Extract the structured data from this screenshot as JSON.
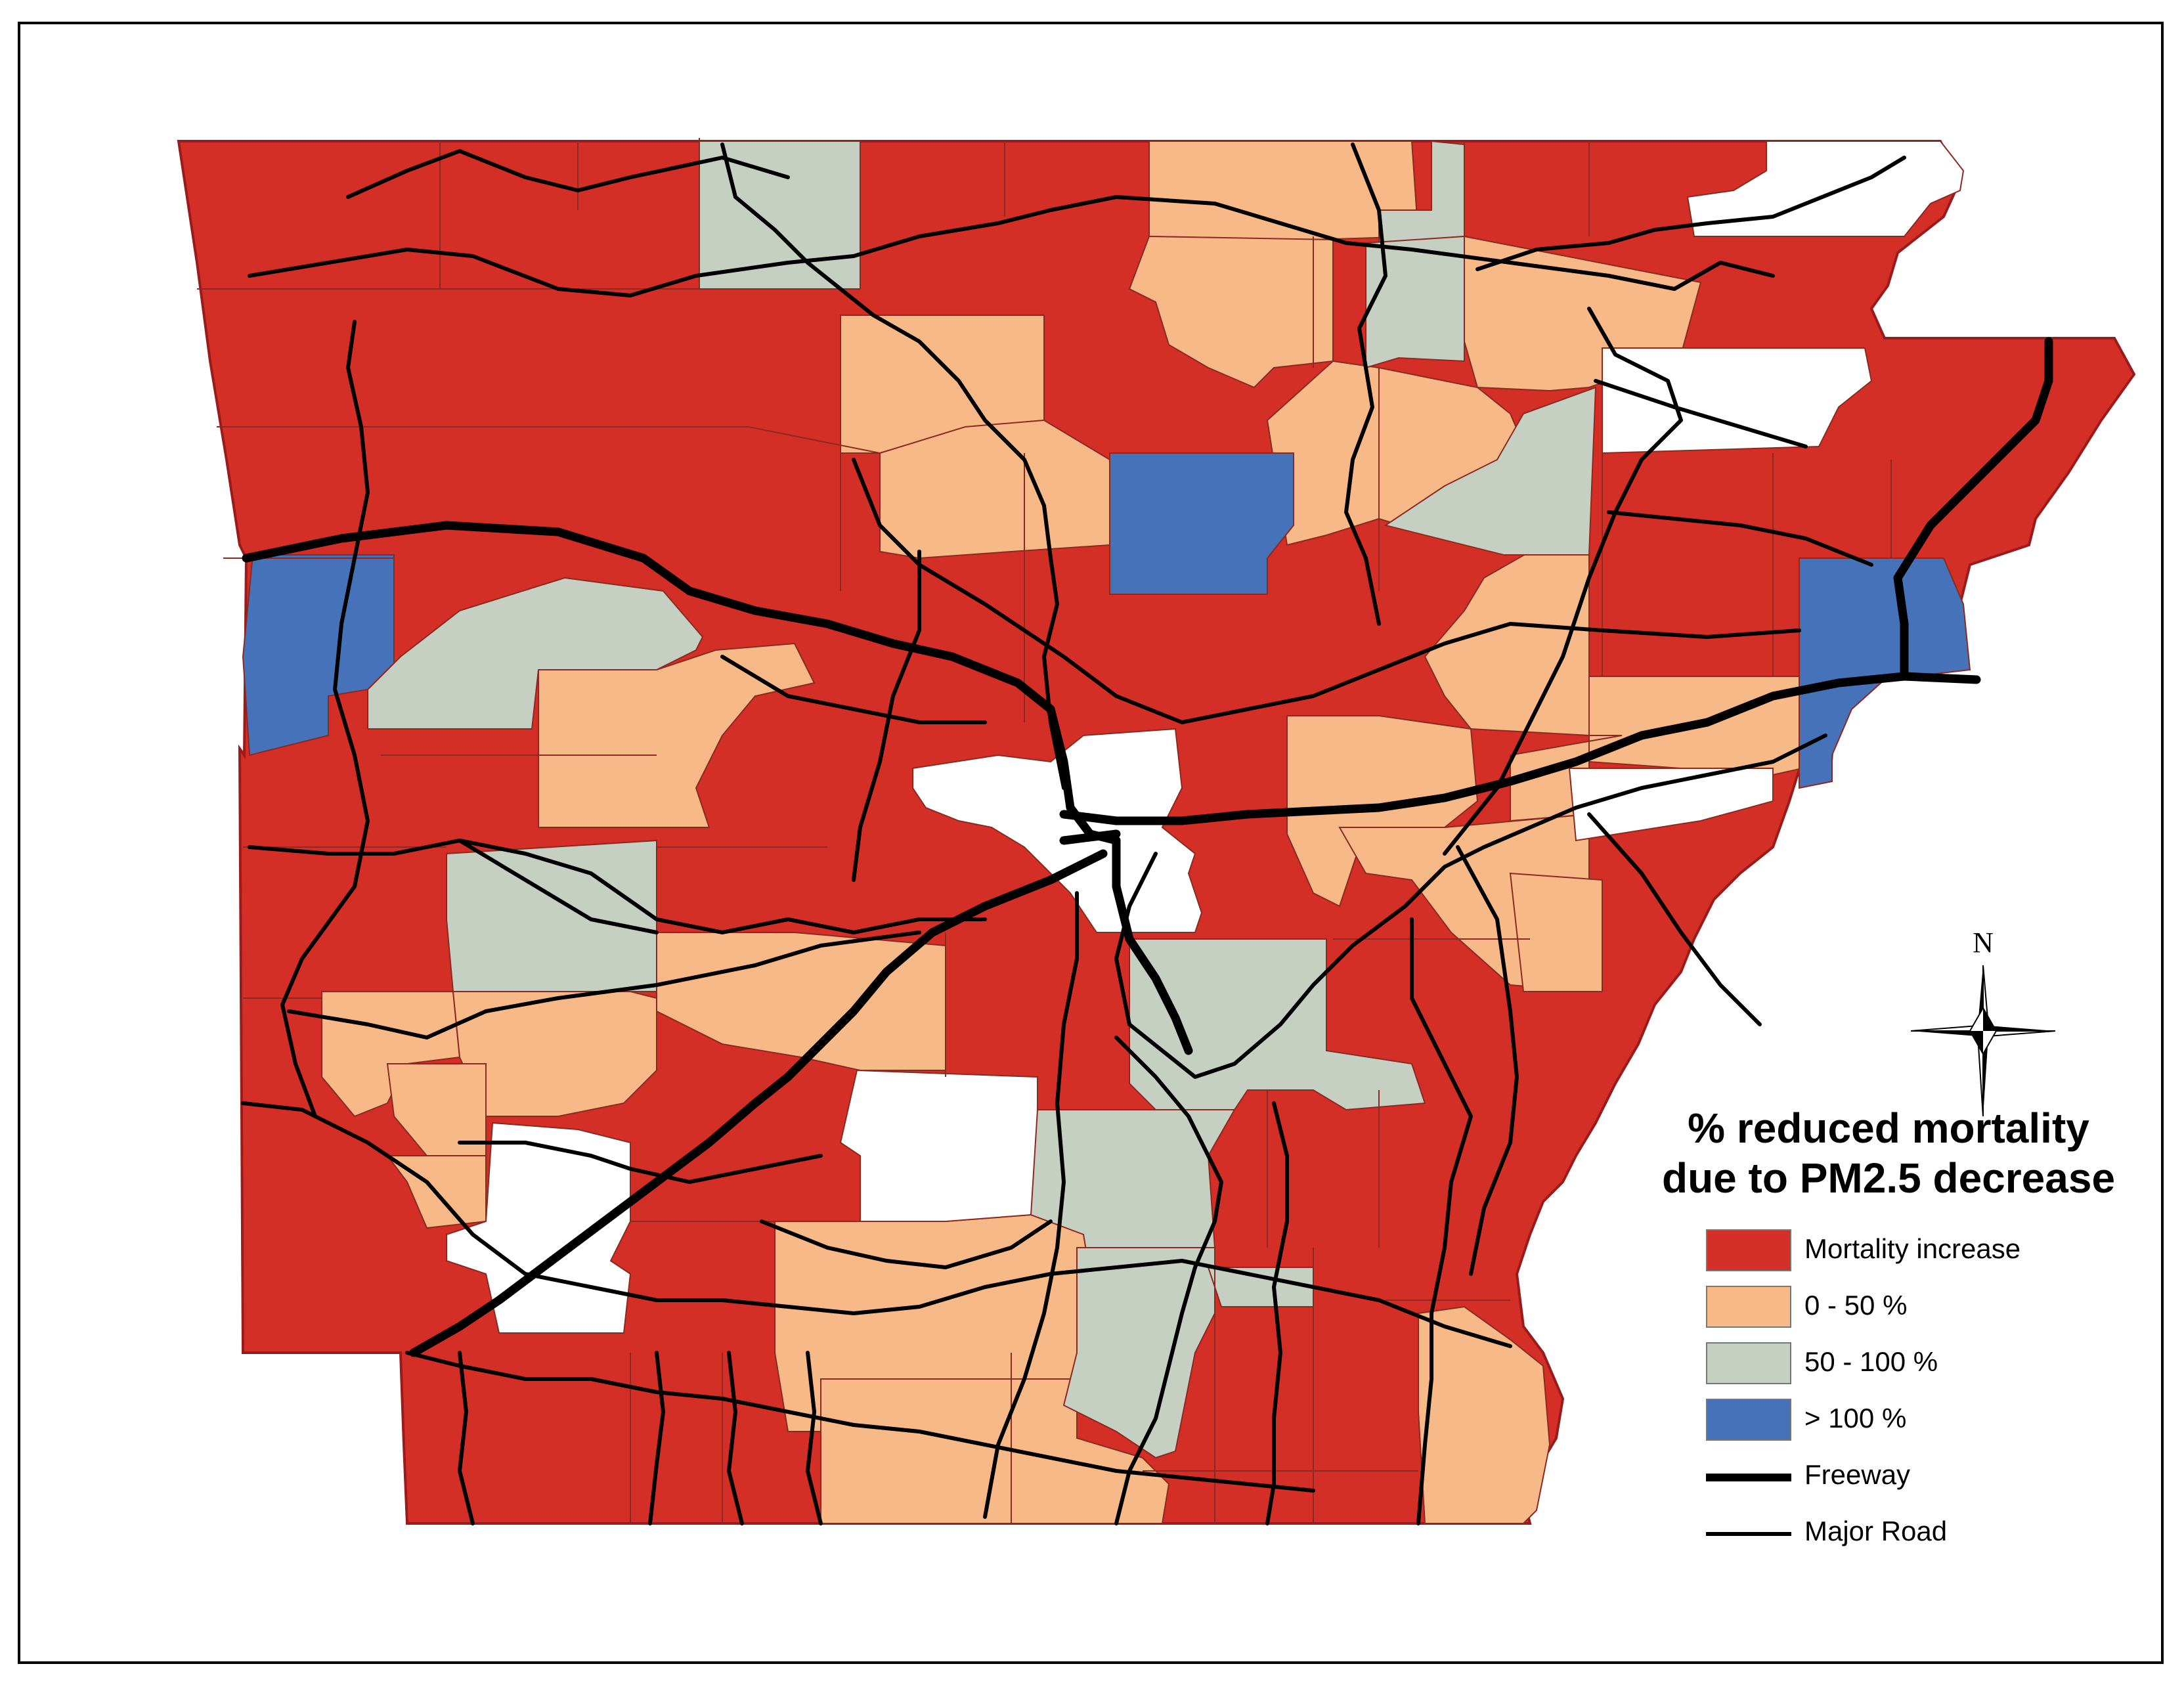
{
  "legend": {
    "title_line1": "% reduced mortality",
    "title_line2": "due to PM2.5 decrease",
    "items": [
      {
        "label": "Mortality increase",
        "color": "#d32f27"
      },
      {
        "label": "0 - 50 %",
        "color": "#f7b987"
      },
      {
        "label": "50 - 100 %",
        "color": "#c5d0c3"
      },
      {
        "label": "> 100 %",
        "color": "#4572b8"
      }
    ],
    "freeway_label": "Freeway",
    "major_road_label": "Major Road"
  },
  "compass": {
    "north_label": "N"
  },
  "colors": {
    "increase": "#d32f27",
    "low": "#f7b987",
    "mid": "#c5d0c3",
    "high": "#4572b8",
    "nodata": "#ffffff",
    "boundary": "#9a1b1b",
    "road": "#000000"
  }
}
